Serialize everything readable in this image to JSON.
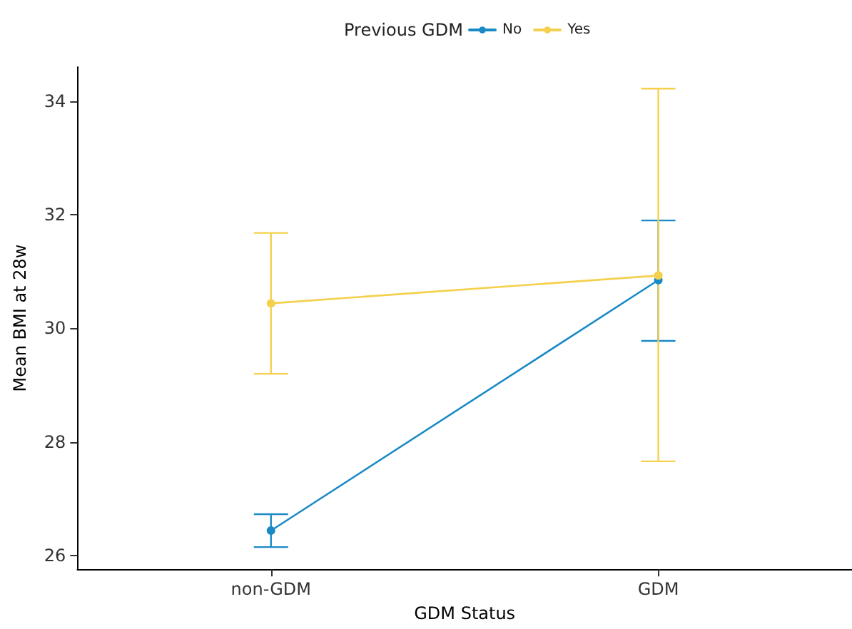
{
  "chart_data": {
    "type": "line",
    "xlabel": "GDM Status",
    "ylabel": "Mean BMI at 28w",
    "legend_title": "Previous GDM",
    "categories": [
      "non-GDM",
      "GDM"
    ],
    "series": [
      {
        "name": "No",
        "color": "#1a8ac6",
        "values": [
          26.44,
          30.85
        ],
        "errors": [
          [
            26.15,
            26.73
          ],
          [
            29.78,
            31.9
          ]
        ]
      },
      {
        "name": "Yes",
        "color": "#f5d04c",
        "values": [
          30.44,
          30.93
        ],
        "errors": [
          [
            29.2,
            31.68
          ],
          [
            27.66,
            34.22
          ]
        ]
      }
    ],
    "ylim": [
      25.76,
      34.6
    ],
    "yticks": [
      26,
      28,
      30,
      32,
      34
    ],
    "grid": false,
    "legend": "top",
    "marker": "circle",
    "line_style": "solid"
  }
}
